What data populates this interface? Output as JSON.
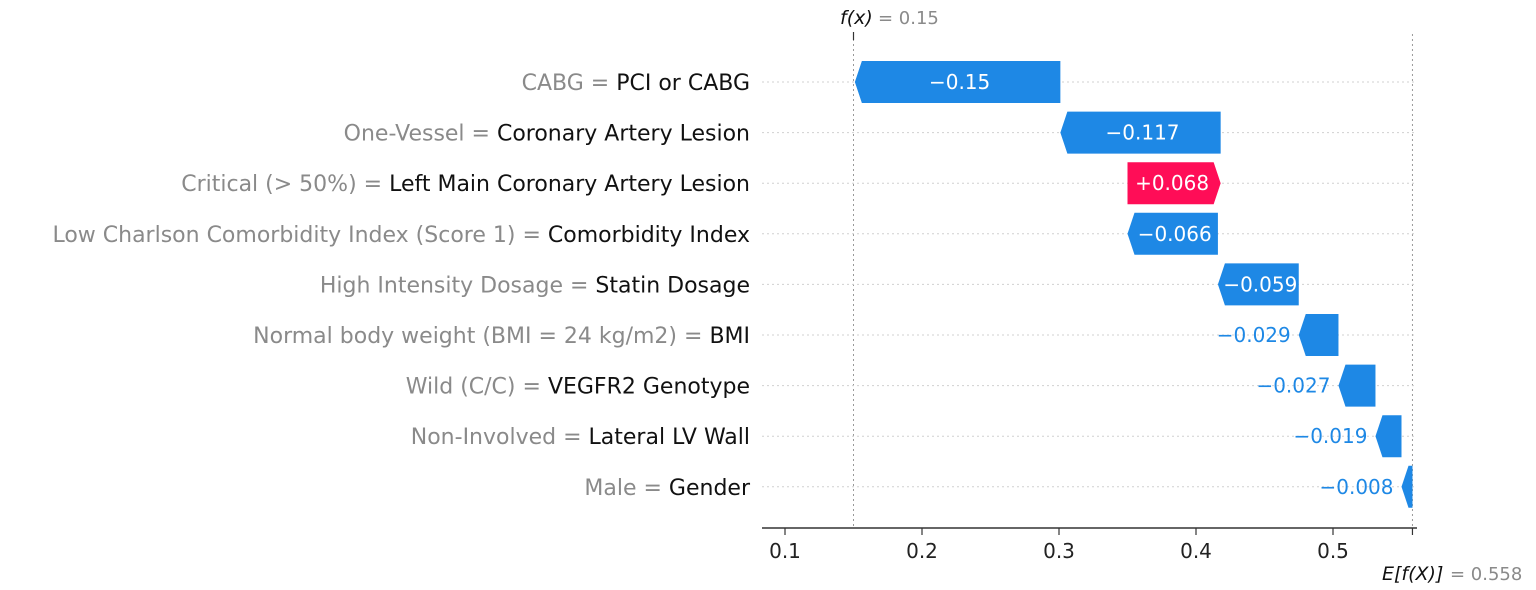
{
  "chart_data": {
    "type": "waterfall",
    "fx_label": "f(x)",
    "fx_value_text": "= 0.15",
    "fx_value": 0.15,
    "base_label": "E[f(X)]",
    "base_value_text": "= 0.558",
    "base_value": 0.558,
    "xlim": [
      0.085,
      0.56
    ],
    "xticks": [
      0.1,
      0.2,
      0.3,
      0.4,
      0.5
    ],
    "xtick_labels": [
      "0.1",
      "0.2",
      "0.3",
      "0.4",
      "0.5"
    ],
    "colors": {
      "negative": "#1e88e5",
      "positive": "#ff0d57",
      "axis": "#333333",
      "grid": "#d0d0d0",
      "feature_value": "#8a8a8a",
      "feature_name": "#111111"
    },
    "features": [
      {
        "value_text": "CABG",
        "name": "PCI or CABG",
        "shap": -0.15,
        "label": "−0.15"
      },
      {
        "value_text": "One-Vessel",
        "name": "Coronary Artery Lesion",
        "shap": -0.117,
        "label": "−0.117"
      },
      {
        "value_text": "Critical (> 50%)",
        "name": "Left Main Coronary Artery Lesion",
        "shap": 0.068,
        "label": "+0.068"
      },
      {
        "value_text": "Low Charlson Comorbidity Index (Score 1)",
        "name": "Comorbidity Index",
        "shap": -0.066,
        "label": "−0.066"
      },
      {
        "value_text": "High Intensity Dosage",
        "name": "Statin Dosage",
        "shap": -0.059,
        "label": "−0.059"
      },
      {
        "value_text": "Normal body weight (BMI = 24 kg/m2)",
        "name": "BMI",
        "shap": -0.029,
        "label": "−0.029"
      },
      {
        "value_text": "Wild (C/C)",
        "name": "VEGFR2 Genotype",
        "shap": -0.027,
        "label": "−0.027"
      },
      {
        "value_text": "Non-Involved",
        "name": "Lateral LV Wall",
        "shap": -0.019,
        "label": "−0.019"
      },
      {
        "value_text": "Male",
        "name": "Gender",
        "shap": -0.008,
        "label": "−0.008"
      }
    ]
  }
}
